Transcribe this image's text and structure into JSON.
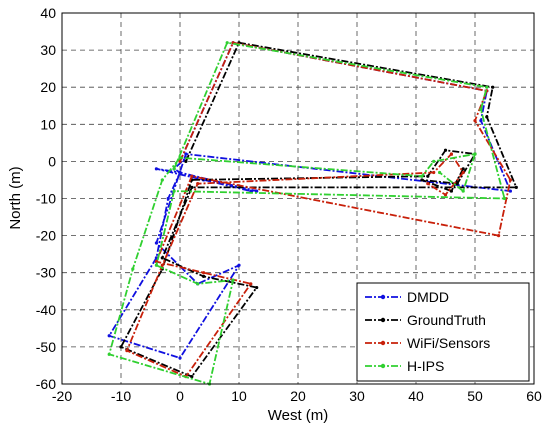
{
  "chart_data": {
    "type": "line",
    "title": "",
    "xlabel": "West (m)",
    "ylabel": "North (m)",
    "xlim": [
      -20,
      60
    ],
    "ylim": [
      -60,
      40
    ],
    "xticks": [
      -20,
      -10,
      0,
      10,
      20,
      30,
      40,
      50,
      60
    ],
    "yticks": [
      -60,
      -50,
      -40,
      -30,
      -20,
      -10,
      0,
      10,
      20,
      30,
      40
    ],
    "grid": true,
    "legend_position": "bottom-right",
    "series": [
      {
        "name": "DMDD",
        "color": "#1010e0",
        "x": [
          0,
          9,
          52,
          51,
          56,
          1,
          -4,
          3,
          10,
          0,
          -12,
          -4,
          -2,
          0,
          -4,
          4,
          12,
          13,
          0,
          -1,
          1
        ],
        "y": [
          0,
          32,
          19,
          11,
          -8,
          2,
          -22,
          -33,
          -28,
          -53,
          -47,
          -26,
          -10,
          -3,
          -2,
          -5,
          -8,
          -8,
          -3,
          -2,
          1
        ]
      },
      {
        "name": "GroundTruth",
        "color": "#000000",
        "x": [
          1,
          10,
          53,
          52,
          57,
          2,
          -3,
          4,
          13,
          2,
          -10,
          -3,
          2,
          42,
          45,
          50,
          47,
          41,
          46,
          48
        ],
        "y": [
          0,
          32,
          20,
          12,
          -7,
          -7,
          -26,
          -31,
          -34,
          -58,
          -50,
          -29,
          -5,
          -4,
          3,
          2,
          -6,
          -5,
          -8,
          -2
        ]
      },
      {
        "name": "WiFi/Sensors",
        "color": "#c8200a",
        "x": [
          0,
          9,
          52,
          50,
          56,
          54,
          2,
          -4,
          4,
          12,
          1,
          -9,
          -3,
          3,
          43,
          46,
          48,
          45,
          42
        ],
        "y": [
          0,
          32,
          19,
          11,
          -5,
          -20,
          -4,
          -27,
          -30,
          -33,
          -58,
          -51,
          -28,
          -6,
          -3,
          2,
          -3,
          -9,
          -6
        ]
      },
      {
        "name": "H-IPS",
        "color": "#30d030",
        "x": [
          -1,
          8,
          52,
          51,
          55,
          -1,
          -4,
          3,
          9,
          5,
          -12,
          -8,
          -3,
          0,
          41,
          43,
          50,
          48,
          44
        ],
        "y": [
          -2,
          32,
          20,
          14,
          -10,
          -8,
          -28,
          -33,
          -32,
          -60,
          -52,
          -29,
          -5,
          1,
          -4,
          0,
          2,
          -8,
          -3
        ]
      }
    ]
  }
}
